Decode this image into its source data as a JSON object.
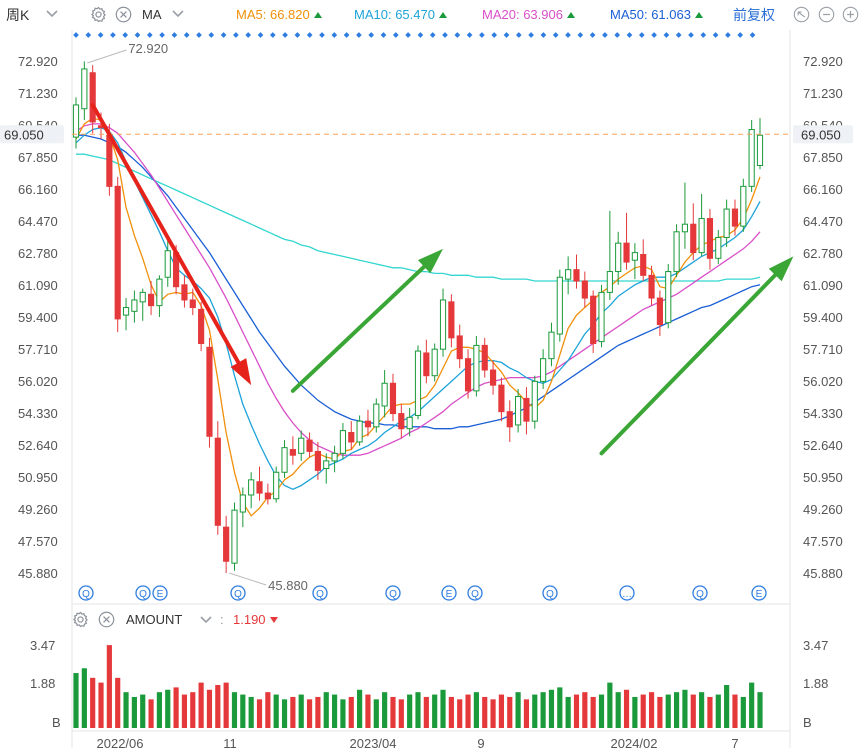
{
  "toolbar": {
    "period_label": "周K",
    "indicator_label": "MA",
    "ma5_label": "MA5:",
    "ma5_value": "66.820",
    "ma10_label": "MA10:",
    "ma10_value": "65.470",
    "ma20_label": "MA20:",
    "ma20_value": "63.906",
    "ma50_label": "MA50:",
    "ma50_value": "61.063",
    "adjust_label": "前复权",
    "colors": {
      "ma5": "#f0900b",
      "ma10": "#1ea3d9",
      "ma20": "#d94fc8",
      "ma50": "#1a5fd6",
      "up": "#1a9a3a",
      "down": "#e5383b"
    }
  },
  "current_price": "69.050",
  "extremes": {
    "high_label": "72.920",
    "low_label": "45.880"
  },
  "volume_panel": {
    "indicator_label": "AMOUNT",
    "separator": ":",
    "value": "1.190",
    "value_color": "#e5383b"
  },
  "chart_data": {
    "type": "candlestick",
    "price_axis": {
      "ticks": [
        "72.920",
        "71.230",
        "69.540",
        "67.850",
        "66.160",
        "64.470",
        "62.780",
        "61.090",
        "59.400",
        "57.710",
        "56.020",
        "54.330",
        "52.640",
        "50.950",
        "49.260",
        "47.570",
        "45.880"
      ],
      "ylim": [
        45.88,
        72.92
      ]
    },
    "volume_axis": {
      "ticks": [
        "3.47",
        "1.88",
        "B"
      ]
    },
    "x_ticks": [
      "2022/06",
      "11",
      "2023/04",
      "9",
      "2024/02",
      "7"
    ],
    "event_markers": [
      "Q",
      "Q",
      "E",
      "Q",
      "Q",
      "…",
      "Q",
      "E",
      "Q",
      "Q",
      "…",
      "Q",
      "E"
    ],
    "candles": [
      {
        "o": 68.9,
        "h": 71.0,
        "l": 68.3,
        "c": 70.6
      },
      {
        "o": 70.4,
        "h": 72.9,
        "l": 69.8,
        "c": 72.5
      },
      {
        "o": 72.3,
        "h": 72.7,
        "l": 69.1,
        "c": 69.7
      },
      {
        "o": 69.5,
        "h": 70.2,
        "l": 68.8,
        "c": 69.4
      },
      {
        "o": 69.0,
        "h": 69.6,
        "l": 65.8,
        "c": 66.3
      },
      {
        "o": 66.3,
        "h": 66.8,
        "l": 58.6,
        "c": 59.3
      },
      {
        "o": 59.5,
        "h": 60.4,
        "l": 58.7,
        "c": 59.9
      },
      {
        "o": 59.7,
        "h": 60.8,
        "l": 59.1,
        "c": 60.3
      },
      {
        "o": 60.2,
        "h": 60.9,
        "l": 59.2,
        "c": 60.7
      },
      {
        "o": 60.6,
        "h": 61.3,
        "l": 59.5,
        "c": 60.0
      },
      {
        "o": 60.0,
        "h": 61.6,
        "l": 59.4,
        "c": 61.4
      },
      {
        "o": 61.5,
        "h": 63.6,
        "l": 61.0,
        "c": 62.9
      },
      {
        "o": 62.8,
        "h": 63.2,
        "l": 60.6,
        "c": 61.0
      },
      {
        "o": 61.1,
        "h": 61.6,
        "l": 59.9,
        "c": 60.3
      },
      {
        "o": 60.3,
        "h": 60.9,
        "l": 59.5,
        "c": 59.9
      },
      {
        "o": 59.8,
        "h": 60.2,
        "l": 57.6,
        "c": 58.0
      },
      {
        "o": 57.8,
        "h": 58.3,
        "l": 52.5,
        "c": 53.1
      },
      {
        "o": 53.0,
        "h": 53.9,
        "l": 47.9,
        "c": 48.4
      },
      {
        "o": 48.3,
        "h": 48.9,
        "l": 45.88,
        "c": 46.5
      },
      {
        "o": 46.4,
        "h": 49.6,
        "l": 46.0,
        "c": 49.2
      },
      {
        "o": 49.1,
        "h": 50.4,
        "l": 48.3,
        "c": 50.0
      },
      {
        "o": 50.0,
        "h": 51.2,
        "l": 49.3,
        "c": 50.8
      },
      {
        "o": 50.7,
        "h": 51.5,
        "l": 49.7,
        "c": 50.1
      },
      {
        "o": 50.1,
        "h": 50.6,
        "l": 49.5,
        "c": 49.8
      },
      {
        "o": 49.8,
        "h": 51.5,
        "l": 49.6,
        "c": 51.2
      },
      {
        "o": 51.2,
        "h": 52.9,
        "l": 50.9,
        "c": 52.5
      },
      {
        "o": 52.4,
        "h": 53.1,
        "l": 51.6,
        "c": 52.1
      },
      {
        "o": 52.2,
        "h": 53.4,
        "l": 51.8,
        "c": 53.0
      },
      {
        "o": 52.9,
        "h": 53.3,
        "l": 52.0,
        "c": 52.3
      },
      {
        "o": 52.3,
        "h": 52.8,
        "l": 50.8,
        "c": 51.3
      },
      {
        "o": 51.4,
        "h": 52.2,
        "l": 50.6,
        "c": 51.8
      },
      {
        "o": 51.8,
        "h": 52.6,
        "l": 51.2,
        "c": 52.2
      },
      {
        "o": 52.2,
        "h": 53.8,
        "l": 51.9,
        "c": 53.4
      },
      {
        "o": 53.3,
        "h": 53.9,
        "l": 52.4,
        "c": 52.8
      },
      {
        "o": 52.8,
        "h": 54.2,
        "l": 52.6,
        "c": 53.9
      },
      {
        "o": 53.9,
        "h": 54.5,
        "l": 53.1,
        "c": 53.6
      },
      {
        "o": 53.6,
        "h": 55.1,
        "l": 53.3,
        "c": 54.8
      },
      {
        "o": 54.7,
        "h": 56.6,
        "l": 54.1,
        "c": 55.9
      },
      {
        "o": 55.9,
        "h": 56.4,
        "l": 53.9,
        "c": 54.3
      },
      {
        "o": 54.3,
        "h": 54.8,
        "l": 53.0,
        "c": 53.5
      },
      {
        "o": 53.5,
        "h": 54.6,
        "l": 53.1,
        "c": 54.1
      },
      {
        "o": 54.2,
        "h": 57.9,
        "l": 54.0,
        "c": 57.6
      },
      {
        "o": 57.5,
        "h": 58.2,
        "l": 55.9,
        "c": 56.3
      },
      {
        "o": 56.3,
        "h": 58.0,
        "l": 56.0,
        "c": 57.7
      },
      {
        "o": 57.7,
        "h": 60.9,
        "l": 57.3,
        "c": 60.3
      },
      {
        "o": 60.2,
        "h": 60.6,
        "l": 57.8,
        "c": 58.3
      },
      {
        "o": 58.4,
        "h": 59.0,
        "l": 56.7,
        "c": 57.2
      },
      {
        "o": 57.2,
        "h": 57.7,
        "l": 55.1,
        "c": 55.5
      },
      {
        "o": 55.5,
        "h": 58.4,
        "l": 55.2,
        "c": 57.9
      },
      {
        "o": 57.9,
        "h": 58.3,
        "l": 56.2,
        "c": 56.6
      },
      {
        "o": 56.6,
        "h": 57.1,
        "l": 55.3,
        "c": 55.8
      },
      {
        "o": 55.8,
        "h": 56.2,
        "l": 53.9,
        "c": 54.4
      },
      {
        "o": 54.4,
        "h": 55.0,
        "l": 52.8,
        "c": 53.6
      },
      {
        "o": 53.7,
        "h": 55.6,
        "l": 53.3,
        "c": 55.2
      },
      {
        "o": 55.1,
        "h": 55.7,
        "l": 53.2,
        "c": 53.9
      },
      {
        "o": 53.9,
        "h": 56.3,
        "l": 53.5,
        "c": 56.0
      },
      {
        "o": 56.0,
        "h": 57.7,
        "l": 55.6,
        "c": 57.2
      },
      {
        "o": 57.2,
        "h": 59.1,
        "l": 56.8,
        "c": 58.6
      },
      {
        "o": 58.5,
        "h": 61.9,
        "l": 58.1,
        "c": 61.5
      },
      {
        "o": 61.4,
        "h": 62.6,
        "l": 60.6,
        "c": 61.9
      },
      {
        "o": 61.9,
        "h": 62.7,
        "l": 60.9,
        "c": 61.3
      },
      {
        "o": 61.3,
        "h": 61.8,
        "l": 59.9,
        "c": 60.4
      },
      {
        "o": 60.5,
        "h": 60.8,
        "l": 57.5,
        "c": 58.0
      },
      {
        "o": 58.1,
        "h": 61.1,
        "l": 57.8,
        "c": 60.7
      },
      {
        "o": 60.7,
        "h": 65.0,
        "l": 60.3,
        "c": 61.8
      },
      {
        "o": 61.8,
        "h": 63.9,
        "l": 61.1,
        "c": 63.3
      },
      {
        "o": 63.3,
        "h": 64.9,
        "l": 61.9,
        "c": 62.3
      },
      {
        "o": 62.4,
        "h": 63.3,
        "l": 61.4,
        "c": 62.8
      },
      {
        "o": 62.7,
        "h": 63.5,
        "l": 61.3,
        "c": 61.6
      },
      {
        "o": 61.6,
        "h": 62.1,
        "l": 60.0,
        "c": 60.4
      },
      {
        "o": 60.4,
        "h": 60.8,
        "l": 58.4,
        "c": 59.0
      },
      {
        "o": 59.1,
        "h": 62.2,
        "l": 58.8,
        "c": 61.8
      },
      {
        "o": 61.8,
        "h": 64.3,
        "l": 61.5,
        "c": 63.9
      },
      {
        "o": 63.9,
        "h": 66.5,
        "l": 63.0,
        "c": 64.3
      },
      {
        "o": 64.3,
        "h": 65.4,
        "l": 62.4,
        "c": 62.8
      },
      {
        "o": 62.8,
        "h": 65.9,
        "l": 62.6,
        "c": 64.6
      },
      {
        "o": 64.6,
        "h": 65.1,
        "l": 61.9,
        "c": 62.5
      },
      {
        "o": 62.5,
        "h": 64.0,
        "l": 62.2,
        "c": 63.6
      },
      {
        "o": 63.6,
        "h": 65.6,
        "l": 63.1,
        "c": 65.1
      },
      {
        "o": 65.1,
        "h": 65.6,
        "l": 63.7,
        "c": 64.2
      },
      {
        "o": 64.2,
        "h": 66.7,
        "l": 63.9,
        "c": 66.3
      },
      {
        "o": 66.3,
        "h": 69.8,
        "l": 66.0,
        "c": 69.3
      },
      {
        "o": 67.4,
        "h": 69.9,
        "l": 67.2,
        "c": 69.0
      }
    ],
    "volume": [
      2.3,
      2.5,
      2.1,
      1.9,
      3.47,
      2.1,
      1.5,
      1.3,
      1.4,
      1.2,
      1.5,
      1.6,
      1.7,
      1.4,
      1.5,
      1.9,
      1.6,
      1.8,
      1.9,
      1.5,
      1.4,
      1.3,
      1.2,
      1.5,
      1.4,
      1.2,
      1.3,
      1.4,
      1.2,
      1.3,
      1.5,
      1.4,
      1.2,
      1.3,
      1.6,
      1.4,
      1.2,
      1.5,
      1.3,
      1.2,
      1.4,
      1.5,
      1.3,
      1.4,
      1.6,
      1.3,
      1.2,
      1.4,
      1.5,
      1.3,
      1.2,
      1.4,
      1.3,
      1.5,
      1.2,
      1.4,
      1.5,
      1.6,
      1.7,
      1.3,
      1.4,
      1.5,
      1.3,
      1.4,
      1.9,
      1.5,
      1.6,
      1.3,
      1.4,
      1.5,
      1.3,
      1.4,
      1.5,
      1.6,
      1.4,
      1.5,
      1.3,
      1.4,
      1.8,
      1.4,
      1.3,
      1.9,
      1.5
    ],
    "ma_series": {
      "ma5": [
        68.8,
        69.6,
        69.9,
        69.8,
        69.0,
        67.7,
        65.2,
        63.7,
        62.5,
        61.1,
        60.2,
        60.6,
        60.7,
        60.6,
        60.7,
        60.0,
        58.7,
        56.1,
        53.3,
        51.2,
        49.6,
        48.9,
        49.3,
        49.9,
        50.2,
        50.8,
        51.1,
        51.6,
        52.0,
        52.2,
        52.0,
        51.9,
        52.3,
        52.4,
        53.0,
        53.2,
        53.7,
        54.2,
        54.7,
        54.8,
        54.8,
        55.0,
        55.2,
        55.8,
        56.7,
        57.6,
        57.8,
        57.8,
        57.7,
        57.5,
        57.0,
        56.5,
        55.8,
        55.4,
        54.9,
        54.6,
        55.0,
        56.0,
        57.4,
        58.8,
        59.5,
        59.9,
        60.3,
        60.7,
        61.0,
        61.4,
        61.7,
        62.0,
        62.1,
        61.9,
        61.0,
        60.9,
        61.6,
        62.3,
        62.8,
        63.2,
        63.4,
        63.6,
        63.7,
        64.0,
        64.6,
        65.6,
        66.8
      ],
      "ma10": [
        68.6,
        69.0,
        69.3,
        69.4,
        69.2,
        68.6,
        67.6,
        66.6,
        65.7,
        64.8,
        63.9,
        62.9,
        62.0,
        61.6,
        61.3,
        60.9,
        60.4,
        59.4,
        58.0,
        56.3,
        54.8,
        53.7,
        52.7,
        51.8,
        51.0,
        50.5,
        50.3,
        50.5,
        50.8,
        51.1,
        51.5,
        51.7,
        51.9,
        52.2,
        52.4,
        52.6,
        52.9,
        53.3,
        53.6,
        53.9,
        54.1,
        54.4,
        54.8,
        55.2,
        55.6,
        56.0,
        56.4,
        56.8,
        57.0,
        57.1,
        57.1,
        57.0,
        56.7,
        56.5,
        56.2,
        56.0,
        55.9,
        56.1,
        56.6,
        57.1,
        57.8,
        58.5,
        59.0,
        59.6,
        60.0,
        60.5,
        60.8,
        61.1,
        61.3,
        61.5,
        61.5,
        61.5,
        61.7,
        62.0,
        62.3,
        62.6,
        62.8,
        63.0,
        63.3,
        63.6,
        64.0,
        64.7,
        65.5
      ],
      "ma20": [
        69.2,
        69.5,
        69.6,
        69.6,
        69.4,
        69.1,
        68.6,
        68.1,
        67.5,
        66.9,
        66.2,
        65.5,
        64.8,
        64.1,
        63.4,
        62.7,
        62.0,
        61.2,
        60.4,
        59.5,
        58.6,
        57.7,
        56.8,
        55.9,
        55.1,
        54.4,
        53.8,
        53.3,
        52.9,
        52.6,
        52.4,
        52.2,
        52.1,
        52.1,
        52.1,
        52.2,
        52.4,
        52.6,
        52.8,
        53.0,
        53.3,
        53.5,
        53.8,
        54.1,
        54.4,
        54.8,
        55.1,
        55.4,
        55.7,
        55.9,
        56.0,
        56.1,
        56.2,
        56.2,
        56.2,
        56.2,
        56.3,
        56.5,
        56.8,
        57.1,
        57.4,
        57.7,
        58.0,
        58.3,
        58.6,
        58.9,
        59.2,
        59.5,
        59.8,
        60.0,
        60.2,
        60.4,
        60.6,
        60.9,
        61.2,
        61.5,
        61.8,
        62.1,
        62.4,
        62.7,
        63.0,
        63.4,
        63.9
      ],
      "ma50": [
        69.0,
        69.0,
        68.9,
        68.8,
        68.6,
        68.4,
        68.1,
        67.7,
        67.3,
        66.8,
        66.3,
        65.8,
        65.2,
        64.6,
        64.0,
        63.4,
        62.8,
        62.1,
        61.4,
        60.7,
        60.0,
        59.3,
        58.6,
        58.0,
        57.4,
        56.8,
        56.3,
        55.8,
        55.4,
        55.0,
        54.7,
        54.4,
        54.2,
        54.0,
        53.9,
        53.8,
        53.8,
        53.7,
        53.7,
        53.6,
        53.6,
        53.6,
        53.6,
        53.5,
        53.5,
        53.5,
        53.6,
        53.6,
        53.7,
        53.8,
        53.9,
        54.0,
        54.2,
        54.4,
        54.6,
        54.9,
        55.2,
        55.5,
        55.8,
        56.1,
        56.4,
        56.7,
        57.0,
        57.3,
        57.6,
        57.9,
        58.1,
        58.3,
        58.5,
        58.7,
        58.9,
        59.1,
        59.3,
        59.5,
        59.7,
        59.9,
        60.0,
        60.2,
        60.4,
        60.6,
        60.8,
        61.0,
        61.1
      ],
      "ma200": [
        68.0,
        68.0,
        67.9,
        67.8,
        67.7,
        67.5,
        67.3,
        67.1,
        66.9,
        66.7,
        66.5,
        66.3,
        66.1,
        65.9,
        65.7,
        65.5,
        65.3,
        65.1,
        64.9,
        64.7,
        64.5,
        64.3,
        64.1,
        63.9,
        63.7,
        63.5,
        63.4,
        63.2,
        63.1,
        62.9,
        62.8,
        62.7,
        62.6,
        62.5,
        62.4,
        62.3,
        62.2,
        62.1,
        62.0,
        62.0,
        61.9,
        61.8,
        61.8,
        61.7,
        61.7,
        61.6,
        61.6,
        61.6,
        61.5,
        61.5,
        61.5,
        61.4,
        61.4,
        61.4,
        61.4,
        61.3,
        61.3,
        61.3,
        61.3,
        61.3,
        61.3,
        61.3,
        61.3,
        61.3,
        61.3,
        61.3,
        61.3,
        61.3,
        61.3,
        61.3,
        61.3,
        61.3,
        61.3,
        61.3,
        61.3,
        61.3,
        61.3,
        61.3,
        61.4,
        61.4,
        61.4,
        61.4,
        61.5
      ]
    },
    "ma_colors": {
      "ma5": "#f0900b",
      "ma10": "#1ea3d9",
      "ma20": "#d94fc8",
      "ma50": "#1a5fd6",
      "ma200": "#33d6d0"
    },
    "annotations": [
      {
        "type": "arrow",
        "color": "#e5231b",
        "from": [
          2,
          70.6
        ],
        "to": [
          21,
          55.8
        ]
      },
      {
        "type": "arrow",
        "color": "#3aa635",
        "from": [
          26,
          55.5
        ],
        "to": [
          44,
          63.0
        ]
      },
      {
        "type": "arrow",
        "color": "#3aa635",
        "from": [
          63,
          52.2
        ],
        "to": [
          86,
          62.6
        ]
      }
    ]
  }
}
